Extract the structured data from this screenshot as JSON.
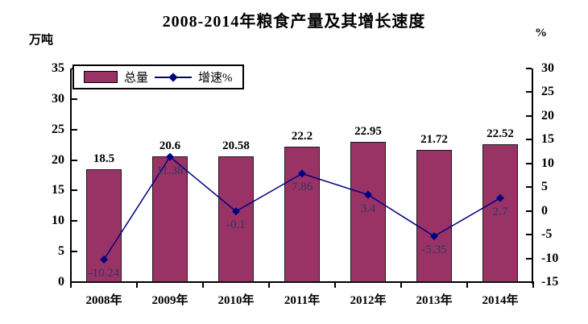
{
  "page": {
    "background": "#FFFFFF"
  },
  "chart_data": {
    "type": "bar",
    "subtype": "combo bar + line, dual y-axes, no gridlines, white background",
    "title": "2008-2014年粮食产量及其增长速度",
    "categories": [
      "2008年",
      "2009年",
      "2010年",
      "2011年",
      "2012年",
      "2013年",
      "2014年"
    ],
    "series": [
      {
        "name": "总量",
        "type": "bar",
        "axis": "left",
        "unit": "万吨",
        "color": "#993366",
        "border_color": "#1a1a1a",
        "label_color": "#000000",
        "values": [
          18.5,
          20.6,
          20.58,
          22.2,
          22.95,
          21.72,
          22.52
        ]
      },
      {
        "name": "增速%",
        "type": "line",
        "axis": "right",
        "unit": "%",
        "color": "#000080",
        "marker": "diamond",
        "label_color": "#333366",
        "values": [
          -10.24,
          11.38,
          -0.1,
          7.86,
          3.4,
          -5.35,
          2.7
        ]
      }
    ],
    "left_axis": {
      "label": "万吨",
      "min": 0,
      "max": 35,
      "step": 5,
      "ticks": [
        0,
        5,
        10,
        15,
        20,
        25,
        30,
        35
      ]
    },
    "right_axis": {
      "label": "%",
      "min": -15,
      "max": 30,
      "step": 5,
      "ticks": [
        -15,
        -10,
        -5,
        0,
        5,
        10,
        15,
        20,
        25,
        30
      ]
    },
    "legend": {
      "position": "top-left-inside",
      "items": [
        "总量",
        "增速%"
      ]
    },
    "grid": false,
    "data_labels": true
  }
}
